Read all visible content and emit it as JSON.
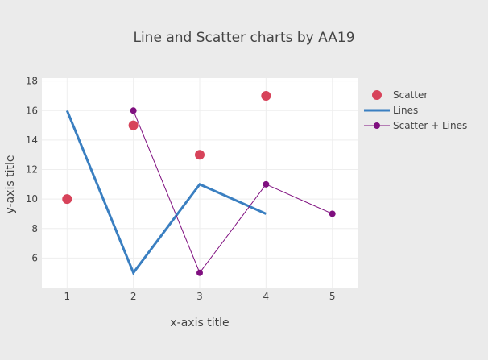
{
  "chart_data": {
    "type": "line",
    "title": "Line and Scatter charts by AA19",
    "xlabel": "x-axis title",
    "ylabel": "y-axis title",
    "xlim": [
      0.62,
      5.38
    ],
    "ylim": [
      4.0,
      18.2
    ],
    "x_ticks": [
      1,
      2,
      3,
      4,
      5
    ],
    "y_ticks": [
      6,
      8,
      10,
      12,
      14,
      16,
      18
    ],
    "grid": true,
    "legend_position": "top-right, outside plot",
    "series": [
      {
        "name": "Scatter",
        "mode": "markers",
        "color": "#d7435a",
        "x": [
          1,
          2,
          3,
          4
        ],
        "y": [
          10,
          15,
          13,
          17
        ]
      },
      {
        "name": "Lines",
        "mode": "lines",
        "color": "#3a7fc1",
        "x": [
          1,
          2,
          3,
          4
        ],
        "y": [
          16,
          5,
          11,
          9
        ]
      },
      {
        "name": "Scatter + Lines",
        "mode": "lines+markers",
        "color": "#7f0f7f",
        "x": [
          2,
          3,
          4,
          5
        ],
        "y": [
          16,
          5,
          11,
          9
        ]
      }
    ]
  }
}
